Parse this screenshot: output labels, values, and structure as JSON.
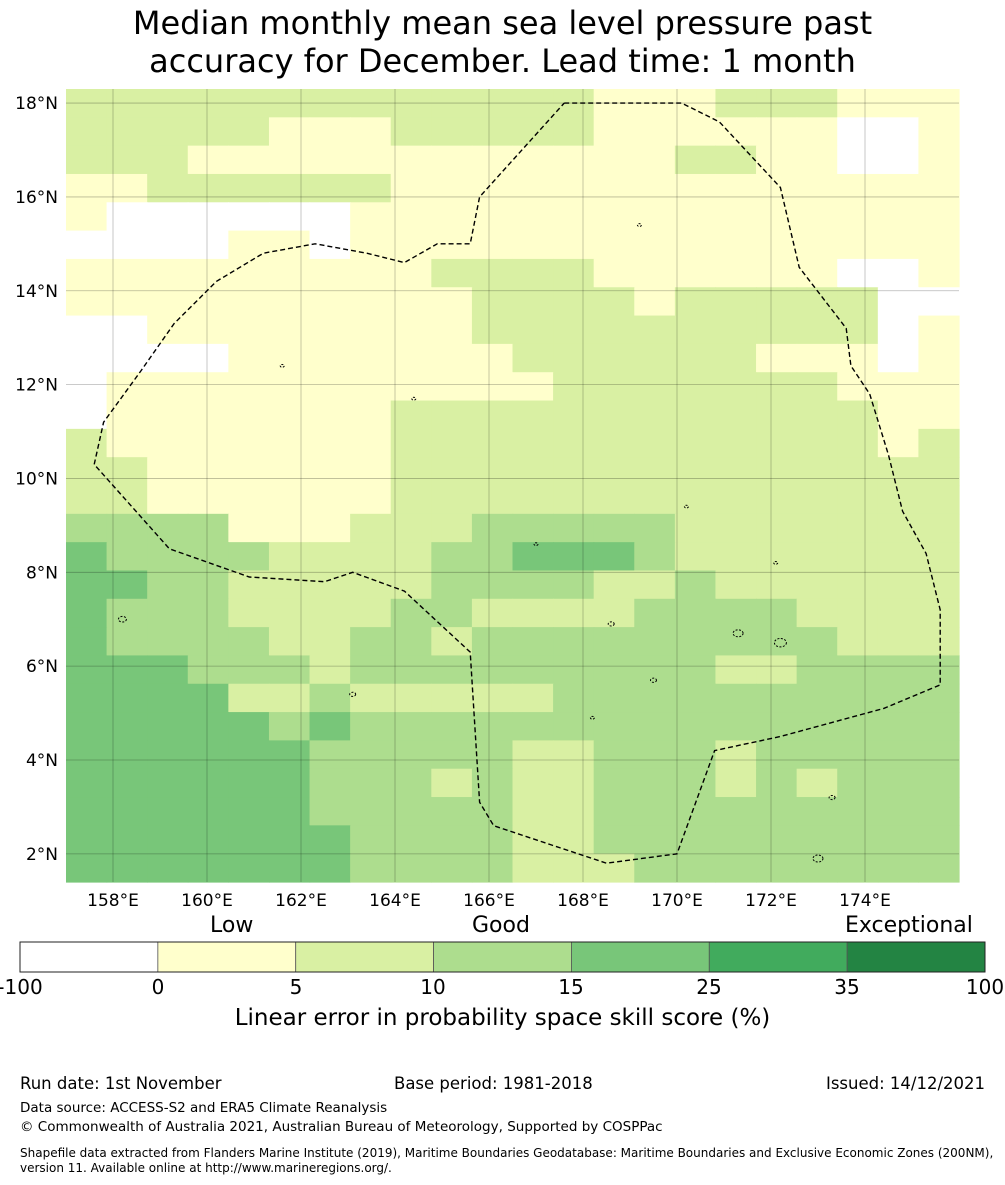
{
  "title": {
    "line1": "Median monthly mean sea level pressure past",
    "line2": "accuracy for December. Lead time: 1 month"
  },
  "map": {
    "lon_min": 157.0,
    "lon_max": 176.0,
    "lat_min": 1.4,
    "lat_max": 18.3,
    "lat_ticks": [
      {
        "value": 18,
        "label": "18°N"
      },
      {
        "value": 16,
        "label": "16°N"
      },
      {
        "value": 14,
        "label": "14°N"
      },
      {
        "value": 12,
        "label": "12°N"
      },
      {
        "value": 10,
        "label": "10°N"
      },
      {
        "value": 8,
        "label": "8°N"
      },
      {
        "value": 6,
        "label": "6°N"
      },
      {
        "value": 4,
        "label": "4°N"
      },
      {
        "value": 2,
        "label": "2°N"
      }
    ],
    "lon_ticks": [
      {
        "value": 158,
        "label": "158°E"
      },
      {
        "value": 160,
        "label": "160°E"
      },
      {
        "value": 162,
        "label": "162°E"
      },
      {
        "value": 164,
        "label": "164°E"
      },
      {
        "value": 166,
        "label": "166°E"
      },
      {
        "value": 168,
        "label": "168°E"
      },
      {
        "value": 170,
        "label": "170°E"
      },
      {
        "value": 172,
        "label": "172°E"
      },
      {
        "value": 174,
        "label": "174°E"
      }
    ],
    "category_colors": [
      "#ffffff",
      "#ffffcc",
      "#d9f0a3",
      "#addd8e",
      "#78c679",
      "#41ab5d",
      "#238443"
    ],
    "grid_rows_north_to_south": [
      "2222222222222111222111",
      "2222211122222111111001",
      "2221111111111112211001",
      "1122222211111111111111",
      "1000000111111111111111",
      "0000110111111111111111",
      "1111111112222111111001",
      "1111111111222212222200",
      "0011111111222222222201",
      "0000111111122222211101",
      "0111111111112222222111",
      "0111111122222222222211",
      "2111111122222222222212",
      "2211111122222222222222",
      "2211111122222222222222",
      "3333111222333332222222",
      "4333322223344432222222",
      "4433222223333223222222",
      "4333222233222233332222",
      "4333322332333333333222",
      "4443332333333333223333",
      "4444223222223333333333",
      "4444434333333333333333",
      "4444443333322333233333",
      "4444443332322333232333",
      "4444443333322333333333",
      "4444444333322333333333",
      "4444444333322233333333"
    ],
    "eez_boundary": [
      [
        167.6,
        18.0
      ],
      [
        170.1,
        18.0
      ],
      [
        170.9,
        17.6
      ],
      [
        172.2,
        16.2
      ],
      [
        172.6,
        14.5
      ],
      [
        173.6,
        13.2
      ],
      [
        173.7,
        12.4
      ],
      [
        174.1,
        11.8
      ],
      [
        174.5,
        10.5
      ],
      [
        174.8,
        9.3
      ],
      [
        175.3,
        8.4
      ],
      [
        175.6,
        7.2
      ],
      [
        175.6,
        5.6
      ],
      [
        174.4,
        5.1
      ],
      [
        172.2,
        4.5
      ],
      [
        170.8,
        4.2
      ],
      [
        170.0,
        2.0
      ],
      [
        168.5,
        1.8
      ],
      [
        167.3,
        2.2
      ],
      [
        166.1,
        2.6
      ],
      [
        165.8,
        3.1
      ],
      [
        165.6,
        6.3
      ],
      [
        164.2,
        7.6
      ],
      [
        163.1,
        8.0
      ],
      [
        162.5,
        7.8
      ],
      [
        160.9,
        7.9
      ],
      [
        159.2,
        8.5
      ],
      [
        157.6,
        10.3
      ],
      [
        157.8,
        11.2
      ],
      [
        158.6,
        12.3
      ],
      [
        159.3,
        13.3
      ],
      [
        160.2,
        14.2
      ],
      [
        161.2,
        14.8
      ],
      [
        162.3,
        15.0
      ],
      [
        163.4,
        14.8
      ],
      [
        164.2,
        14.6
      ],
      [
        164.9,
        15.0
      ],
      [
        165.6,
        15.0
      ],
      [
        165.8,
        16.0
      ],
      [
        167.6,
        18.0
      ]
    ]
  },
  "colorbar": {
    "categories": [
      "Low",
      "Good",
      "Exceptional"
    ],
    "ticks": [
      "-100",
      "0",
      "5",
      "10",
      "15",
      "25",
      "35",
      "100"
    ],
    "label": "Linear error in probability space skill score (%)"
  },
  "footer": {
    "run_date": "Run date: 1st November",
    "base_period": "Base period: 1981-2018",
    "issued": "Issued: 14/12/2021",
    "data_source": "Data source: ACCESS-S2 and ERA5 Climate Reanalysis",
    "copyright": "© Commonwealth of Australia 2021, Australian Bureau of Meteorology, Supported by COSPPac",
    "shapefile": "Shapefile data extracted from Flanders Marine Institute (2019), Maritime Boundaries Geodatabase: Maritime Boundaries and Exclusive Economic Zones (200NM), version 11. Available online at http://www.marineregions.org/."
  }
}
